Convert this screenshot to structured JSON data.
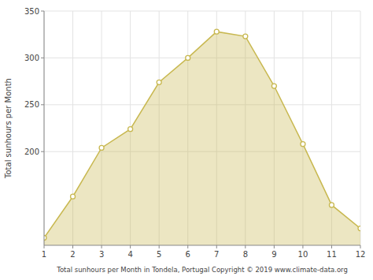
{
  "chart_data": {
    "type": "area",
    "x": [
      1,
      2,
      3,
      4,
      5,
      6,
      7,
      8,
      9,
      10,
      11,
      12
    ],
    "values": [
      108,
      152,
      204,
      224,
      274,
      300,
      328,
      323,
      270,
      208,
      143,
      118
    ],
    "color": "#c8b850",
    "marker": "circle",
    "xlabel": "Total sunhours per Month in Tondela, Portugal Copyright © 2019 www.climate-data.org",
    "ylabel": "Total sunhours per Month",
    "xlim": [
      1,
      12
    ],
    "ylim": [
      100,
      350
    ],
    "xticks": [
      1,
      2,
      3,
      4,
      5,
      6,
      7,
      8,
      9,
      10,
      11,
      12
    ],
    "yticks": [
      200,
      250,
      300,
      350
    ],
    "grid": true
  }
}
